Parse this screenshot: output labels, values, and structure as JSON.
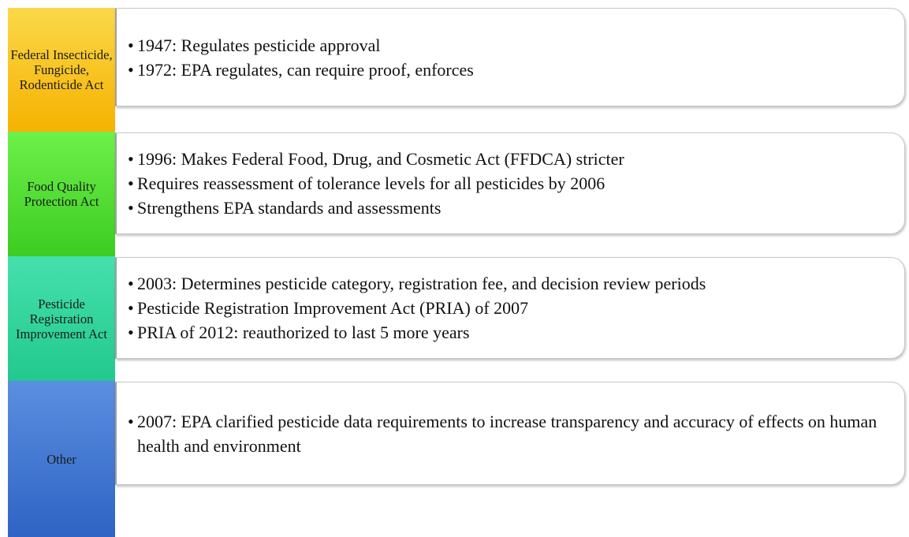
{
  "rows": [
    {
      "label": "Federal Insecticide, Fungicide, Rodenticide Act",
      "items": [
        "1947: Regulates pesticide approval",
        "1972: EPA regulates, can require proof, enforces"
      ]
    },
    {
      "label": "Food Quality Protection Act",
      "items": [
        "1996: Makes Federal Food, Drug, and Cosmetic Act (FFDCA) stricter",
        "Requires reassessment of tolerance levels for all pesticides by 2006",
        "Strengthens EPA standards and assessments"
      ]
    },
    {
      "label": "Pesticide Registration Improvement Act",
      "items": [
        "2003: Determines pesticide category, registration fee, and decision review periods",
        "Pesticide Registration Improvement Act (PRIA) of 2007",
        "PRIA of 2012: reauthorized to last 5 more years"
      ]
    },
    {
      "label": "Other",
      "items": [
        "2007: EPA clarified pesticide data requirements to increase transparency and accuracy of effects on human health and environment"
      ]
    }
  ]
}
